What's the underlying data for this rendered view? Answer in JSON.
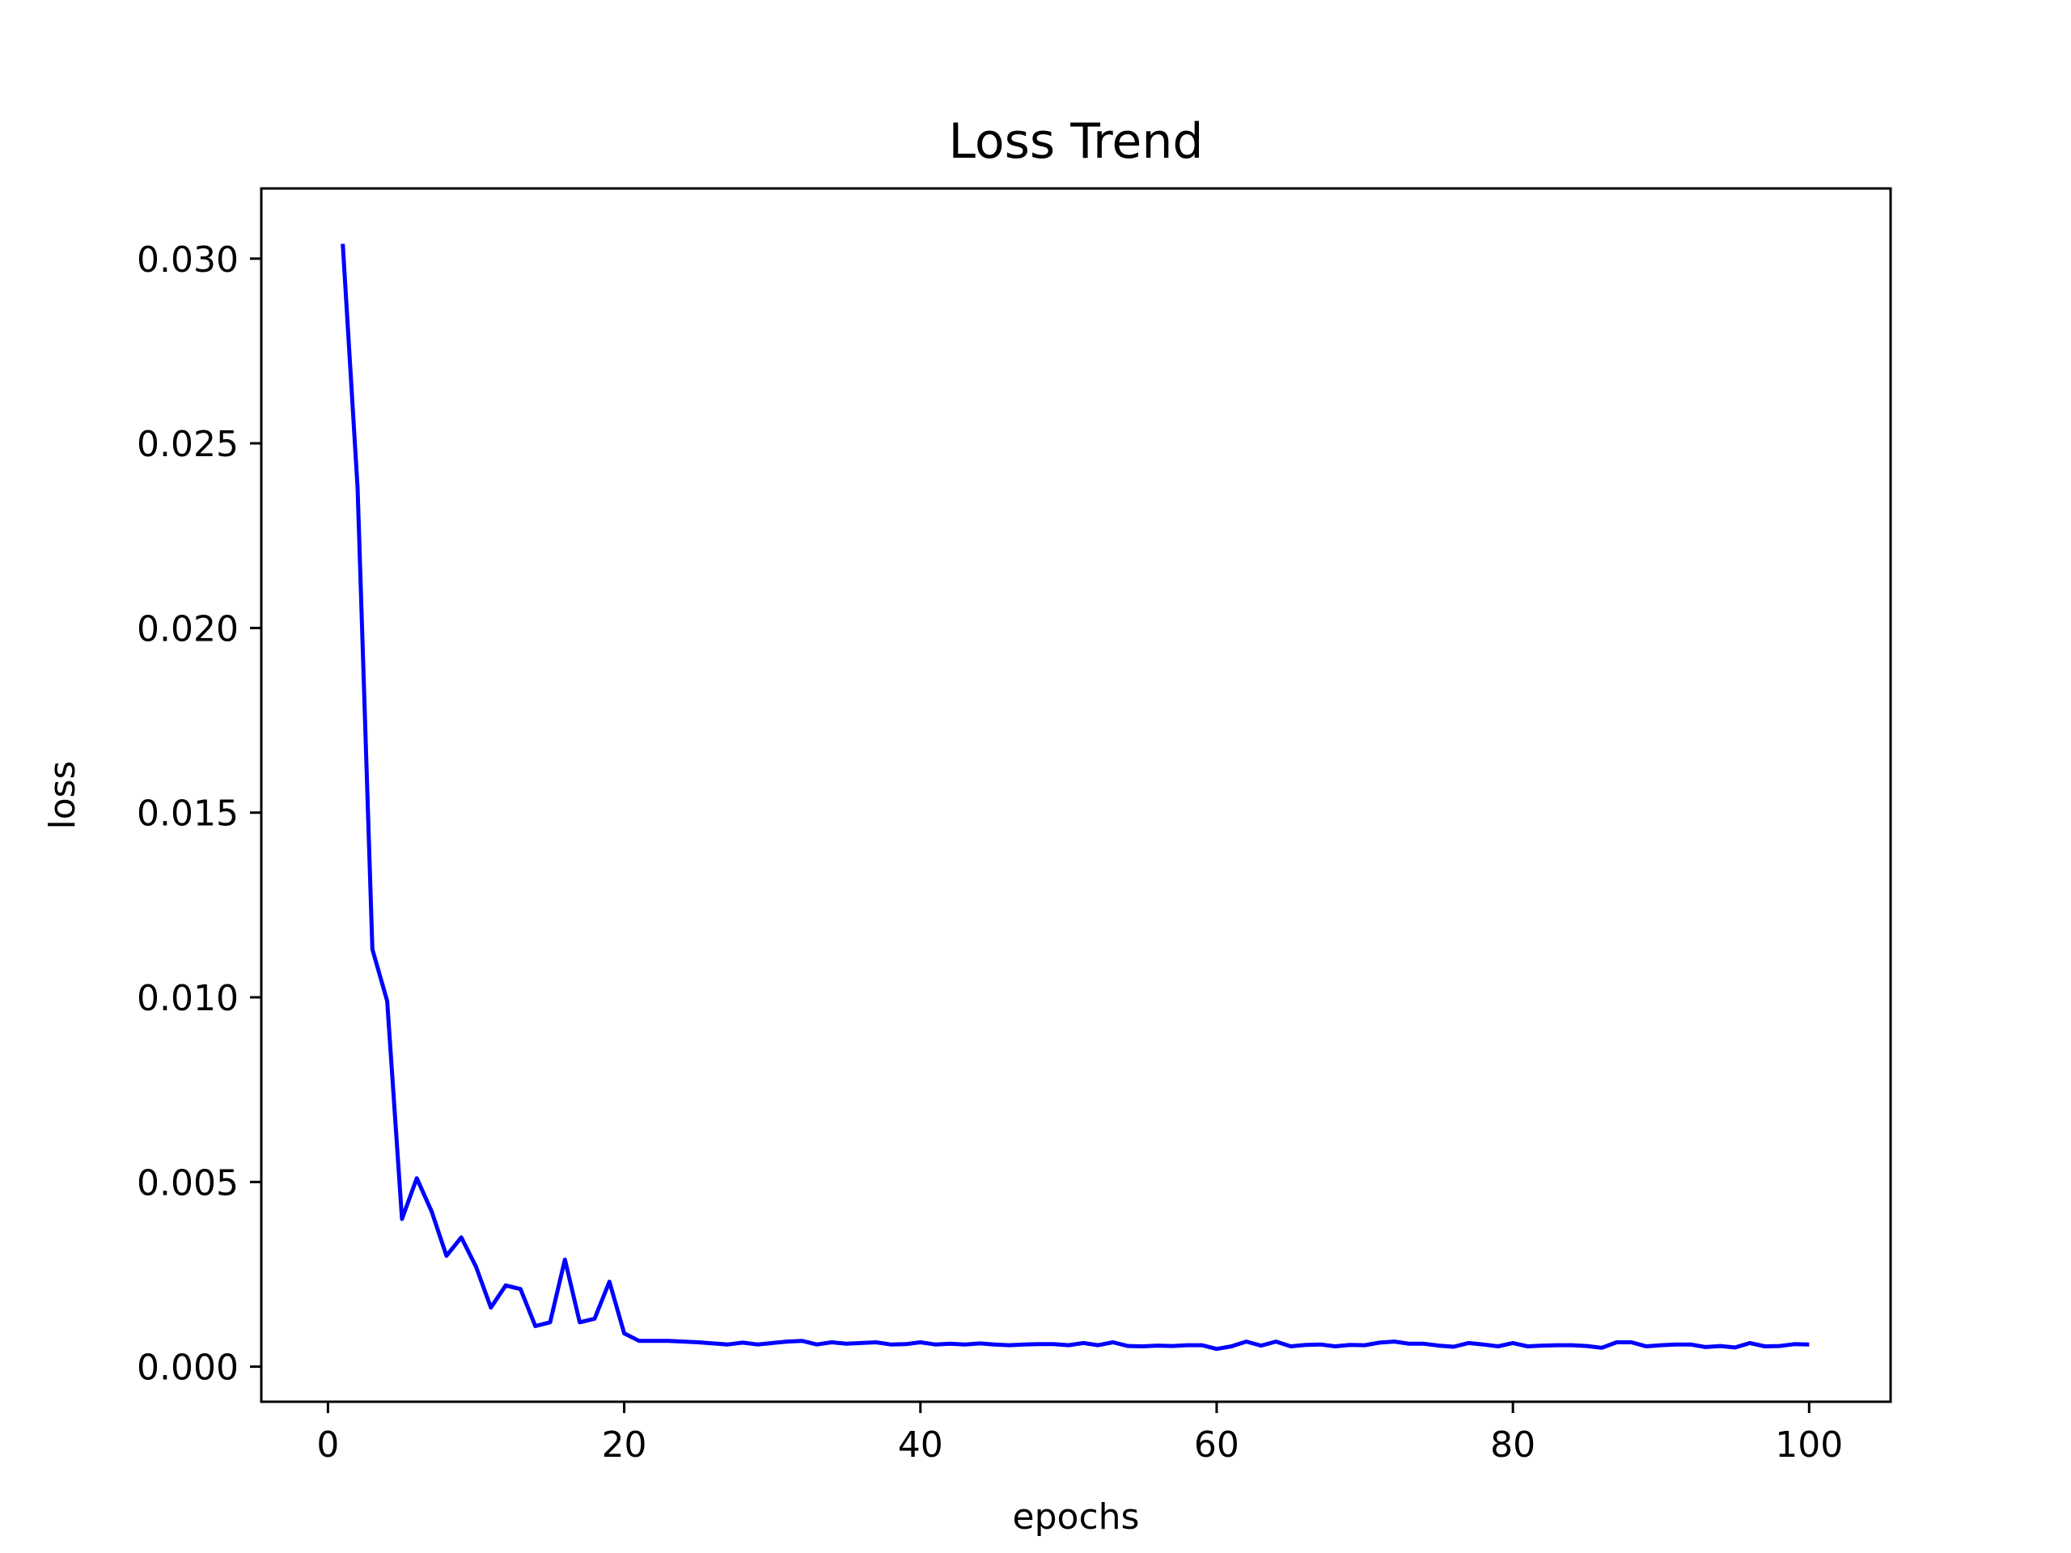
{
  "chart_data": {
    "type": "line",
    "title": "Loss Trend",
    "xlabel": "epochs",
    "ylabel": "loss",
    "xlim": [
      -4.5,
      105.5
    ],
    "ylim": [
      -0.00095,
      0.0319
    ],
    "x_ticks": [
      0,
      20,
      40,
      60,
      80,
      100
    ],
    "x_tick_labels": [
      "0",
      "20",
      "40",
      "60",
      "80",
      "100"
    ],
    "y_ticks": [
      0.0,
      0.005,
      0.01,
      0.015,
      0.02,
      0.025,
      0.03
    ],
    "y_tick_labels": [
      "0.000",
      "0.005",
      "0.010",
      "0.015",
      "0.020",
      "0.025",
      "0.030"
    ],
    "grid": false,
    "series": [
      {
        "color": "#0000ff",
        "x": [
          1,
          2,
          3,
          4,
          5,
          6,
          7,
          8,
          9,
          10,
          11,
          12,
          13,
          14,
          15,
          16,
          17,
          18,
          19,
          20,
          21,
          22,
          23,
          24,
          25,
          26,
          27,
          28,
          29,
          30,
          31,
          32,
          33,
          34,
          35,
          36,
          37,
          38,
          39,
          40,
          41,
          42,
          43,
          44,
          45,
          46,
          47,
          48,
          49,
          50,
          51,
          52,
          53,
          54,
          55,
          56,
          57,
          58,
          59,
          60,
          61,
          62,
          63,
          64,
          65,
          66,
          67,
          68,
          69,
          70,
          71,
          72,
          73,
          74,
          75,
          76,
          77,
          78,
          79,
          80,
          81,
          82,
          83,
          84,
          85,
          86,
          87,
          88,
          89,
          90,
          91,
          92,
          93,
          94,
          95,
          96,
          97,
          98,
          99,
          100
        ],
        "y": [
          0.0304,
          0.0238,
          0.0113,
          0.0099,
          0.004,
          0.0051,
          0.0042,
          0.003,
          0.0035,
          0.0027,
          0.0016,
          0.0022,
          0.0021,
          0.0011,
          0.0012,
          0.0029,
          0.0012,
          0.0013,
          0.0023,
          0.0009,
          0.0007,
          0.0007,
          0.0007,
          0.00068,
          0.00066,
          0.00063,
          0.0006,
          0.00065,
          0.0006,
          0.00064,
          0.00068,
          0.0007,
          0.0006,
          0.00066,
          0.00062,
          0.00064,
          0.00066,
          0.0006,
          0.00061,
          0.00066,
          0.0006,
          0.00062,
          0.0006,
          0.00063,
          0.0006,
          0.00058,
          0.0006,
          0.00061,
          0.00061,
          0.00058,
          0.00064,
          0.00058,
          0.00066,
          0.00056,
          0.00055,
          0.00057,
          0.00056,
          0.00058,
          0.00058,
          0.00048,
          0.00055,
          0.00068,
          0.00057,
          0.00068,
          0.00055,
          0.00059,
          0.0006,
          0.00055,
          0.00059,
          0.00058,
          0.00065,
          0.00068,
          0.00062,
          0.00062,
          0.00057,
          0.00054,
          0.00064,
          0.0006,
          0.00055,
          0.00064,
          0.00055,
          0.00057,
          0.00058,
          0.00058,
          0.00056,
          0.00051,
          0.00066,
          0.00066,
          0.00055,
          0.00058,
          0.0006,
          0.0006,
          0.00053,
          0.00056,
          0.00052,
          0.00064,
          0.00055,
          0.00056,
          0.00061,
          0.0006
        ]
      }
    ]
  }
}
